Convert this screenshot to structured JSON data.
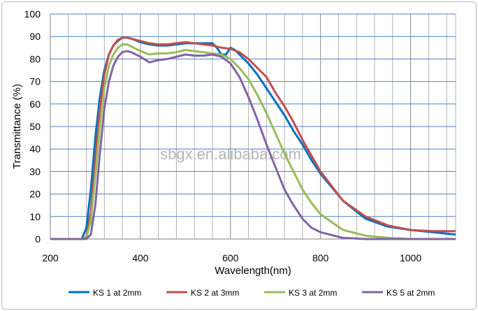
{
  "chart_data": {
    "type": "line",
    "xlabel": "Wavelength(nm)",
    "ylabel": "Transmittance (%)",
    "xlim": [
      200,
      1100
    ],
    "ylim": [
      0,
      100
    ],
    "xticks": [
      200,
      400,
      600,
      800,
      1000
    ],
    "yticks": [
      0,
      10,
      20,
      30,
      40,
      50,
      60,
      70,
      80,
      90,
      100
    ],
    "grid": true,
    "legend_position": "bottom",
    "watermark": "sbgx.en.alibaba.com",
    "series": [
      {
        "name": "KS 1 at 2mm",
        "color": "#0070c0",
        "points": [
          [
            200,
            0
          ],
          [
            270,
            0
          ],
          [
            280,
            5
          ],
          [
            290,
            22
          ],
          [
            300,
            45
          ],
          [
            310,
            63
          ],
          [
            320,
            75
          ],
          [
            330,
            82
          ],
          [
            340,
            86
          ],
          [
            350,
            88
          ],
          [
            360,
            89.5
          ],
          [
            370,
            89.5
          ],
          [
            380,
            89
          ],
          [
            400,
            87.5
          ],
          [
            420,
            86.5
          ],
          [
            440,
            86
          ],
          [
            460,
            86
          ],
          [
            480,
            86.5
          ],
          [
            500,
            87
          ],
          [
            520,
            87
          ],
          [
            540,
            87
          ],
          [
            560,
            87
          ],
          [
            570,
            85
          ],
          [
            580,
            82
          ],
          [
            590,
            82
          ],
          [
            600,
            85
          ],
          [
            610,
            84
          ],
          [
            620,
            82
          ],
          [
            640,
            78
          ],
          [
            660,
            73
          ],
          [
            680,
            67
          ],
          [
            700,
            61
          ],
          [
            720,
            55
          ],
          [
            740,
            48
          ],
          [
            760,
            42
          ],
          [
            780,
            35
          ],
          [
            800,
            29
          ],
          [
            850,
            17
          ],
          [
            900,
            9
          ],
          [
            950,
            5.5
          ],
          [
            1000,
            4
          ],
          [
            1050,
            3
          ],
          [
            1100,
            2
          ]
        ]
      },
      {
        "name": "KS 2 at 3mm",
        "color": "#c0504d",
        "points": [
          [
            200,
            0
          ],
          [
            270,
            0
          ],
          [
            280,
            1
          ],
          [
            290,
            12
          ],
          [
            300,
            35
          ],
          [
            310,
            58
          ],
          [
            320,
            73
          ],
          [
            330,
            82
          ],
          [
            340,
            86
          ],
          [
            350,
            88.5
          ],
          [
            360,
            89.5
          ],
          [
            370,
            89.5
          ],
          [
            380,
            89
          ],
          [
            400,
            88
          ],
          [
            420,
            87
          ],
          [
            440,
            86.5
          ],
          [
            460,
            86.5
          ],
          [
            480,
            87
          ],
          [
            500,
            87.5
          ],
          [
            520,
            87
          ],
          [
            540,
            86.5
          ],
          [
            560,
            86
          ],
          [
            580,
            85
          ],
          [
            600,
            84.5
          ],
          [
            620,
            83
          ],
          [
            640,
            80
          ],
          [
            660,
            76
          ],
          [
            680,
            72
          ],
          [
            700,
            65
          ],
          [
            720,
            59
          ],
          [
            740,
            52
          ],
          [
            760,
            44
          ],
          [
            780,
            37
          ],
          [
            800,
            30
          ],
          [
            850,
            17
          ],
          [
            900,
            10
          ],
          [
            950,
            6
          ],
          [
            1000,
            4
          ],
          [
            1050,
            3.5
          ],
          [
            1100,
            3.5
          ]
        ]
      },
      {
        "name": "KS 3 at 2mm",
        "color": "#9bbb59",
        "points": [
          [
            200,
            0
          ],
          [
            270,
            0
          ],
          [
            280,
            0.5
          ],
          [
            290,
            8
          ],
          [
            300,
            28
          ],
          [
            310,
            50
          ],
          [
            320,
            67
          ],
          [
            330,
            77
          ],
          [
            340,
            82
          ],
          [
            350,
            85
          ],
          [
            360,
            86.5
          ],
          [
            370,
            86.5
          ],
          [
            380,
            85.5
          ],
          [
            400,
            83.5
          ],
          [
            420,
            82
          ],
          [
            440,
            82.5
          ],
          [
            460,
            82.5
          ],
          [
            480,
            83
          ],
          [
            500,
            84
          ],
          [
            520,
            83.5
          ],
          [
            540,
            83
          ],
          [
            560,
            82.5
          ],
          [
            580,
            82
          ],
          [
            600,
            80
          ],
          [
            620,
            76
          ],
          [
            640,
            71
          ],
          [
            660,
            64
          ],
          [
            680,
            56
          ],
          [
            700,
            47
          ],
          [
            720,
            38
          ],
          [
            740,
            30
          ],
          [
            760,
            22
          ],
          [
            780,
            16
          ],
          [
            800,
            11
          ],
          [
            850,
            4
          ],
          [
            900,
            1.5
          ],
          [
            950,
            0.5
          ],
          [
            1000,
            0
          ],
          [
            1100,
            0
          ]
        ]
      },
      {
        "name": "KS 5 at 2mm",
        "color": "#8064a2",
        "points": [
          [
            200,
            0
          ],
          [
            280,
            0
          ],
          [
            290,
            2
          ],
          [
            300,
            15
          ],
          [
            310,
            38
          ],
          [
            320,
            58
          ],
          [
            330,
            70
          ],
          [
            340,
            77
          ],
          [
            350,
            81
          ],
          [
            360,
            83
          ],
          [
            370,
            83.5
          ],
          [
            380,
            83
          ],
          [
            400,
            81
          ],
          [
            420,
            78.5
          ],
          [
            440,
            79.5
          ],
          [
            460,
            80
          ],
          [
            480,
            81
          ],
          [
            500,
            82
          ],
          [
            520,
            81.5
          ],
          [
            540,
            81.5
          ],
          [
            560,
            82
          ],
          [
            580,
            81
          ],
          [
            600,
            78
          ],
          [
            620,
            72
          ],
          [
            640,
            63
          ],
          [
            660,
            53
          ],
          [
            680,
            42
          ],
          [
            700,
            32
          ],
          [
            720,
            22
          ],
          [
            740,
            15
          ],
          [
            760,
            9
          ],
          [
            780,
            5
          ],
          [
            800,
            3
          ],
          [
            850,
            0.5
          ],
          [
            900,
            0
          ],
          [
            1100,
            0
          ]
        ]
      }
    ]
  }
}
